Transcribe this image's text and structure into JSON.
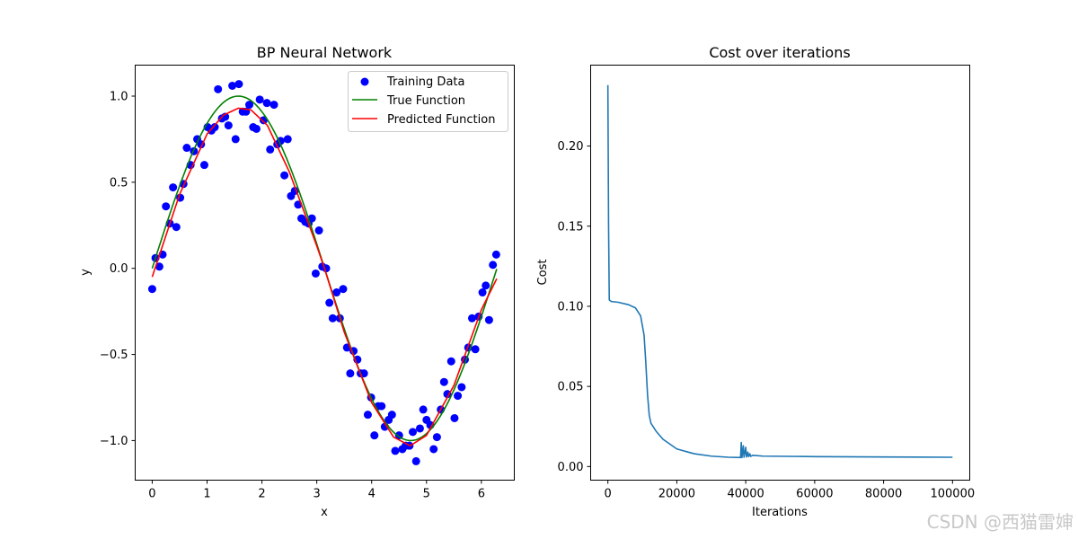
{
  "watermark": "CSDN @西猫雷婶",
  "colors": {
    "training": "#0000ff",
    "true_fn": "#008000",
    "predicted": "#ff0000",
    "cost": "#1f77b4"
  },
  "chart_data": [
    {
      "type": "scatter",
      "title": "BP Neural Network",
      "xlabel": "x",
      "ylabel": "y",
      "xlim": [
        -0.31,
        6.6
      ],
      "ylim": [
        -1.23,
        1.18
      ],
      "xticks": [
        0,
        1,
        2,
        3,
        4,
        5,
        6
      ],
      "xtick_labels": [
        "0",
        "1",
        "2",
        "3",
        "4",
        "5",
        "6"
      ],
      "yticks": [
        -1.0,
        -0.5,
        0.0,
        0.5,
        1.0
      ],
      "ytick_labels": [
        "−1.0",
        "−0.5",
        "0.0",
        "0.5",
        "1.0"
      ],
      "legend": {
        "location": "top-right",
        "entries": [
          "Training Data",
          "True Function",
          "Predicted Function"
        ]
      },
      "series": [
        {
          "name": "Training Data",
          "kind": "scatter",
          "points": [
            [
              0.0,
              -0.12
            ],
            [
              0.06,
              0.06
            ],
            [
              0.13,
              0.01
            ],
            [
              0.19,
              0.08
            ],
            [
              0.25,
              0.36
            ],
            [
              0.32,
              0.26
            ],
            [
              0.38,
              0.47
            ],
            [
              0.44,
              0.24
            ],
            [
              0.51,
              0.41
            ],
            [
              0.57,
              0.49
            ],
            [
              0.63,
              0.7
            ],
            [
              0.7,
              0.6
            ],
            [
              0.76,
              0.68
            ],
            [
              0.82,
              0.75
            ],
            [
              0.89,
              0.72
            ],
            [
              0.95,
              0.6
            ],
            [
              1.01,
              0.82
            ],
            [
              1.08,
              0.8
            ],
            [
              1.14,
              0.82
            ],
            [
              1.2,
              1.04
            ],
            [
              1.27,
              0.87
            ],
            [
              1.33,
              0.88
            ],
            [
              1.39,
              0.83
            ],
            [
              1.46,
              1.06
            ],
            [
              1.52,
              0.75
            ],
            [
              1.58,
              1.07
            ],
            [
              1.65,
              0.91
            ],
            [
              1.71,
              0.91
            ],
            [
              1.77,
              0.95
            ],
            [
              1.84,
              0.82
            ],
            [
              1.9,
              0.81
            ],
            [
              1.96,
              0.98
            ],
            [
              2.03,
              0.86
            ],
            [
              2.09,
              0.96
            ],
            [
              2.15,
              0.69
            ],
            [
              2.22,
              0.95
            ],
            [
              2.28,
              0.72
            ],
            [
              2.34,
              0.74
            ],
            [
              2.41,
              0.54
            ],
            [
              2.47,
              0.75
            ],
            [
              2.53,
              0.42
            ],
            [
              2.6,
              0.45
            ],
            [
              2.66,
              0.37
            ],
            [
              2.72,
              0.29
            ],
            [
              2.79,
              0.27
            ],
            [
              2.85,
              0.26
            ],
            [
              2.91,
              0.29
            ],
            [
              2.98,
              -0.03
            ],
            [
              3.04,
              0.22
            ],
            [
              3.1,
              0.01
            ],
            [
              3.17,
              0.0
            ],
            [
              3.23,
              -0.2
            ],
            [
              3.29,
              -0.29
            ],
            [
              3.36,
              -0.14
            ],
            [
              3.42,
              -0.29
            ],
            [
              3.48,
              -0.12
            ],
            [
              3.55,
              -0.46
            ],
            [
              3.61,
              -0.61
            ],
            [
              3.67,
              -0.48
            ],
            [
              3.74,
              -0.53
            ],
            [
              3.8,
              -0.61
            ],
            [
              3.86,
              -0.61
            ],
            [
              3.93,
              -0.85
            ],
            [
              3.99,
              -0.75
            ],
            [
              4.05,
              -0.97
            ],
            [
              4.12,
              -0.8
            ],
            [
              4.18,
              -0.8
            ],
            [
              4.24,
              -0.92
            ],
            [
              4.31,
              -0.88
            ],
            [
              4.37,
              -0.85
            ],
            [
              4.43,
              -1.06
            ],
            [
              4.5,
              -0.97
            ],
            [
              4.56,
              -1.05
            ],
            [
              4.62,
              -1.03
            ],
            [
              4.69,
              -1.03
            ],
            [
              4.75,
              -0.95
            ],
            [
              4.81,
              -1.12
            ],
            [
              4.88,
              -0.93
            ],
            [
              4.94,
              -0.82
            ],
            [
              5.0,
              -0.88
            ],
            [
              5.07,
              -0.91
            ],
            [
              5.13,
              -1.05
            ],
            [
              5.19,
              -0.98
            ],
            [
              5.26,
              -0.82
            ],
            [
              5.32,
              -0.66
            ],
            [
              5.38,
              -0.73
            ],
            [
              5.45,
              -0.54
            ],
            [
              5.51,
              -0.87
            ],
            [
              5.57,
              -0.74
            ],
            [
              5.64,
              -0.69
            ],
            [
              5.7,
              -0.53
            ],
            [
              5.76,
              -0.46
            ],
            [
              5.83,
              -0.29
            ],
            [
              5.89,
              -0.47
            ],
            [
              5.95,
              -0.28
            ],
            [
              6.02,
              -0.14
            ],
            [
              6.08,
              -0.1
            ],
            [
              6.14,
              -0.3
            ],
            [
              6.21,
              0.02
            ],
            [
              6.27,
              0.08
            ]
          ]
        },
        {
          "name": "True Function",
          "kind": "line",
          "function": "sin(x)",
          "x_range": [
            0,
            6.28
          ]
        },
        {
          "name": "Predicted Function",
          "kind": "line",
          "points": [
            [
              0.0,
              -0.05
            ],
            [
              0.5,
              0.43
            ],
            [
              1.0,
              0.78
            ],
            [
              1.3,
              0.89
            ],
            [
              1.57,
              0.93
            ],
            [
              1.8,
              0.92
            ],
            [
              2.1,
              0.83
            ],
            [
              2.5,
              0.56
            ],
            [
              3.0,
              0.13
            ],
            [
              3.14,
              0.0
            ],
            [
              3.5,
              -0.37
            ],
            [
              4.0,
              -0.78
            ],
            [
              4.4,
              -0.98
            ],
            [
              4.7,
              -1.03
            ],
            [
              5.0,
              -0.97
            ],
            [
              5.5,
              -0.68
            ],
            [
              6.0,
              -0.24
            ],
            [
              6.28,
              -0.06
            ]
          ]
        }
      ]
    },
    {
      "type": "line",
      "title": "Cost over iterations",
      "xlabel": "Iterations",
      "ylabel": "Cost",
      "xlim": [
        -5000,
        105000
      ],
      "ylim": [
        -0.0085,
        0.2505
      ],
      "xticks": [
        0,
        20000,
        40000,
        60000,
        80000,
        100000
      ],
      "xtick_labels": [
        "0",
        "20000",
        "40000",
        "60000",
        "80000",
        "100000"
      ],
      "yticks": [
        0.0,
        0.05,
        0.1,
        0.15,
        0.2
      ],
      "ytick_labels": [
        "0.00",
        "0.05",
        "0.10",
        "0.15",
        "0.20"
      ],
      "series": [
        {
          "name": "Cost",
          "points": [
            [
              0,
              0.238
            ],
            [
              200,
              0.15
            ],
            [
              400,
              0.104
            ],
            [
              1000,
              0.103
            ],
            [
              3000,
              0.1025
            ],
            [
              6000,
              0.101
            ],
            [
              8000,
              0.099
            ],
            [
              9500,
              0.094
            ],
            [
              10500,
              0.082
            ],
            [
              11000,
              0.065
            ],
            [
              11500,
              0.045
            ],
            [
              12000,
              0.032
            ],
            [
              12500,
              0.027
            ],
            [
              14000,
              0.022
            ],
            [
              16000,
              0.017
            ],
            [
              18000,
              0.014
            ],
            [
              20000,
              0.011
            ],
            [
              25000,
              0.008
            ],
            [
              30000,
              0.0065
            ],
            [
              35000,
              0.0058
            ],
            [
              38500,
              0.0056
            ],
            [
              38700,
              0.015
            ],
            [
              38900,
              0.0056
            ],
            [
              39300,
              0.013
            ],
            [
              39500,
              0.0058
            ],
            [
              40000,
              0.012
            ],
            [
              40200,
              0.006
            ],
            [
              40600,
              0.009
            ],
            [
              40800,
              0.0062
            ],
            [
              41200,
              0.008
            ],
            [
              41400,
              0.0063
            ],
            [
              42000,
              0.007
            ],
            [
              45000,
              0.0065
            ],
            [
              60000,
              0.0062
            ],
            [
              80000,
              0.006
            ],
            [
              100000,
              0.0058
            ]
          ]
        }
      ]
    }
  ]
}
